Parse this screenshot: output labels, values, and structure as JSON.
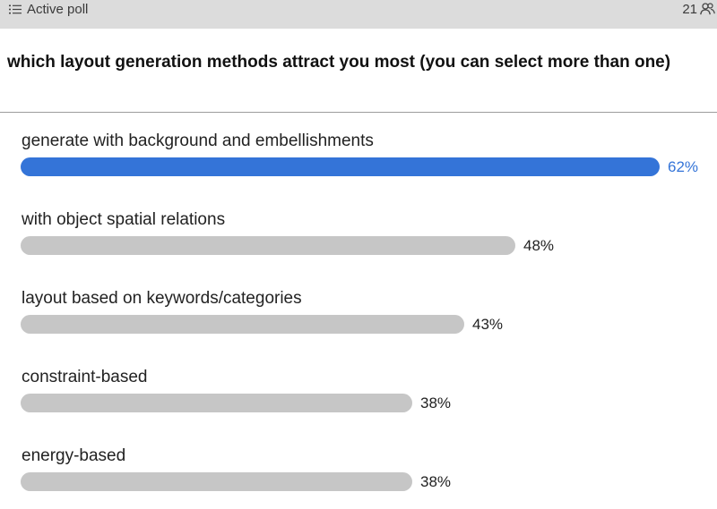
{
  "header": {
    "title": "Active poll",
    "participants": "21",
    "list_icon": "list-icon",
    "people_icon": "people-icon"
  },
  "poll": {
    "question": "which layout generation methods attract you most (you can select more than one)",
    "options": [
      {
        "label": "generate with background and embellishments",
        "percent": 62,
        "percent_label": "62%",
        "leading": true
      },
      {
        "label": "with object spatial relations",
        "percent": 48,
        "percent_label": "48%",
        "leading": false
      },
      {
        "label": "layout based on keywords/categories",
        "percent": 43,
        "percent_label": "43%",
        "leading": false
      },
      {
        "label": "constraint-based",
        "percent": 38,
        "percent_label": "38%",
        "leading": false
      },
      {
        "label": "energy-based",
        "percent": 38,
        "percent_label": "38%",
        "leading": false
      }
    ]
  },
  "colors": {
    "header_bg": "#dcdcdc",
    "leading_bar": "#3474d8",
    "bar": "#c6c6c6"
  }
}
